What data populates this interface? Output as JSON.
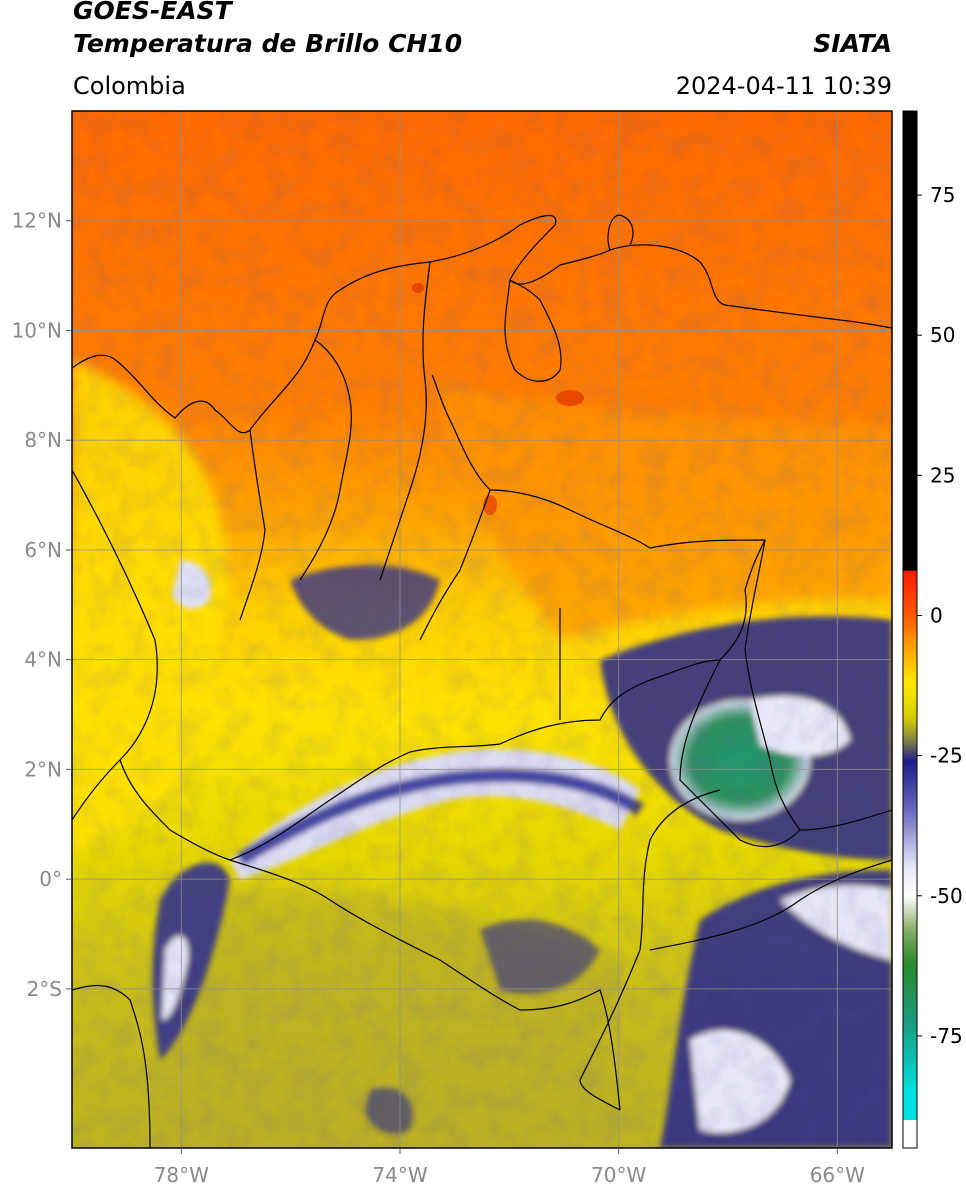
{
  "header": {
    "title_line1": "GOES-EAST",
    "title_line2": "Temperatura de Brillo CH10",
    "organization": "SIATA",
    "region": "Colombia",
    "timestamp": "2024-04-11 10:39"
  },
  "map": {
    "lat_ticks": [
      {
        "value": 12,
        "label": "12°N"
      },
      {
        "value": 10,
        "label": "10°N"
      },
      {
        "value": 8,
        "label": "8°N"
      },
      {
        "value": 6,
        "label": "6°N"
      },
      {
        "value": 4,
        "label": "4°N"
      },
      {
        "value": 2,
        "label": "2°N"
      },
      {
        "value": 0,
        "label": "0°"
      },
      {
        "value": -2,
        "label": "2°S"
      }
    ],
    "lon_ticks": [
      {
        "value": -78,
        "label": "78°W"
      },
      {
        "value": -74,
        "label": "74°W"
      },
      {
        "value": -70,
        "label": "70°W"
      },
      {
        "value": -66,
        "label": "66°W"
      }
    ],
    "lon_range": [
      -80,
      -65
    ],
    "lat_range": [
      -4.9,
      14
    ]
  },
  "colorbar": {
    "range": [
      -95,
      90
    ],
    "ticks": [
      {
        "value": 75,
        "label": "75"
      },
      {
        "value": 50,
        "label": "50"
      },
      {
        "value": 25,
        "label": "25"
      },
      {
        "value": 0,
        "label": "0"
      },
      {
        "value": -25,
        "label": "-25"
      },
      {
        "value": -50,
        "label": "-50"
      },
      {
        "value": -75,
        "label": "-75"
      }
    ],
    "color_stops": [
      {
        "value": 90,
        "color": "#000000"
      },
      {
        "value": 8,
        "color": "#000000"
      },
      {
        "value": 7.9,
        "color": "#ff1a00"
      },
      {
        "value": 0,
        "color": "#ff5a00"
      },
      {
        "value": -5,
        "color": "#ff9a00"
      },
      {
        "value": -12,
        "color": "#ffe800"
      },
      {
        "value": -18,
        "color": "#d8d000"
      },
      {
        "value": -22,
        "color": "#8a8a40"
      },
      {
        "value": -26,
        "color": "#1c1c8a"
      },
      {
        "value": -35,
        "color": "#6c6cc0"
      },
      {
        "value": -45,
        "color": "#e8e8f8"
      },
      {
        "value": -50,
        "color": "#ffffff"
      },
      {
        "value": -56,
        "color": "#8ab06a"
      },
      {
        "value": -62,
        "color": "#2a8a2a"
      },
      {
        "value": -72,
        "color": "#1a9a7a"
      },
      {
        "value": -85,
        "color": "#00e0e0"
      },
      {
        "value": -90,
        "color": "#00e0e0"
      },
      {
        "value": -90.1,
        "color": "#ffffff"
      },
      {
        "value": -95,
        "color": "#ffffff"
      }
    ]
  }
}
